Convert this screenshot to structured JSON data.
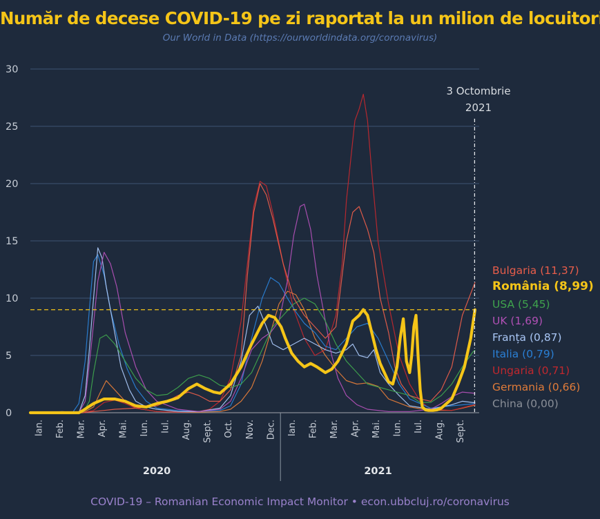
{
  "title": "Număr de decese COVID-19 pe zi raportat la un milion de locuitori",
  "subtitle": "Our World in Data (https://ourworldindata.org/coronavirus)",
  "footer": "COVID-19 – Romanian Economic Impact Monitor • econ.ubbcluj.ro/coronavirus",
  "chart_data": {
    "type": "line",
    "xlabel": "",
    "ylabel": "",
    "ylim": [
      0,
      30
    ],
    "yticks": [
      0,
      5,
      10,
      15,
      20,
      25,
      30
    ],
    "x_tick_unit": "month",
    "month_labels": [
      "Ian.",
      "Feb.",
      "Mar.",
      "Apr.",
      "Mai.",
      "Iun.",
      "Iul.",
      "Aug.",
      "Sept.",
      "Oct.",
      "Nov.",
      "Dec.",
      "Ian.",
      "Feb.",
      "Mar.",
      "Apr.",
      "Mai.",
      "Iun.",
      "Iul.",
      "Aug.",
      "Sept."
    ],
    "year_labels": [
      {
        "label": "2020",
        "month_index": 6
      },
      {
        "label": "2021",
        "month_index": 16.5
      }
    ],
    "grid": true,
    "legend_placement": "right",
    "annotation": {
      "line1": "3 Octombrie",
      "line2": "2021",
      "month_index": 21.1
    },
    "reference_line": {
      "y": 8.99,
      "color": "#f5c518",
      "style": "dashed"
    },
    "x_note": "x values are months since 1 Jan 2020 (0 = 1 Jan 2020, 12 = 1 Jan 2021)",
    "series": [
      {
        "name": "China",
        "legend": "China (0,00)",
        "color": "#8a8f98",
        "width": 1.2,
        "x": [
          0,
          1,
          1.5,
          2,
          2.5,
          3,
          21.1
        ],
        "y": [
          0,
          0.05,
          0.1,
          0.05,
          0.02,
          0,
          0
        ]
      },
      {
        "name": "Germania",
        "legend": "Germania (0,66)",
        "color": "#e07b39",
        "width": 1.2,
        "x": [
          0,
          2.5,
          3,
          3.3,
          3.6,
          4,
          4.5,
          5,
          6,
          7,
          8,
          9,
          9.5,
          10,
          10.5,
          11,
          11.4,
          11.8,
          12.2,
          12.6,
          13,
          13.5,
          14,
          14.5,
          15,
          15.5,
          16,
          16.5,
          17,
          18,
          19,
          20,
          20.5,
          21.1
        ],
        "y": [
          0,
          0,
          0.5,
          1.7,
          2.8,
          2.0,
          1.0,
          0.4,
          0.1,
          0.05,
          0.05,
          0.1,
          0.3,
          1.0,
          2.2,
          4.5,
          7.0,
          9.5,
          10.6,
          10.3,
          9.0,
          6.5,
          5.0,
          3.8,
          2.8,
          2.5,
          2.6,
          2.3,
          1.2,
          0.5,
          0.2,
          0.2,
          0.4,
          0.66
        ]
      },
      {
        "name": "Ungaria",
        "legend": "Ungaria (0,71)",
        "color": "#c0282e",
        "width": 1.2,
        "x": [
          0,
          2.5,
          3,
          3.5,
          4,
          4.5,
          5,
          6,
          7,
          8,
          8.5,
          9,
          9.5,
          10,
          10.3,
          10.6,
          10.9,
          11.2,
          11.5,
          12,
          12.5,
          13,
          13.5,
          14,
          14.5,
          14.8,
          15,
          15.2,
          15.4,
          15.6,
          15.8,
          16,
          16.2,
          16.5,
          17,
          17.5,
          18,
          18.5,
          19,
          20,
          21.1
        ],
        "y": [
          0,
          0,
          0.2,
          0.9,
          1.1,
          0.8,
          0.4,
          0.1,
          0.05,
          0.1,
          0.3,
          1.0,
          3.0,
          8.0,
          13.0,
          18.0,
          20.2,
          19.8,
          17.5,
          13.0,
          9.0,
          6.5,
          5.0,
          5.5,
          8.5,
          13.0,
          18.5,
          22.0,
          25.5,
          26.5,
          27.8,
          25.5,
          21.0,
          15.0,
          9.5,
          5.0,
          2.5,
          1.0,
          0.3,
          0.2,
          0.71
        ]
      },
      {
        "name": "Italia",
        "legend": "Italia (0,79)",
        "color": "#2a7fd4",
        "width": 1.2,
        "x": [
          0,
          2,
          2.3,
          2.6,
          2.8,
          3.0,
          3.2,
          3.5,
          3.8,
          4.2,
          4.6,
          5,
          5.5,
          6,
          7,
          8,
          9,
          9.5,
          10,
          10.5,
          11,
          11.4,
          11.8,
          12.2,
          12.6,
          13,
          13.5,
          14,
          14.5,
          15,
          15.5,
          16,
          16.5,
          17,
          17.5,
          18,
          19,
          20,
          21.1
        ],
        "y": [
          0,
          0,
          0.8,
          4.5,
          9.0,
          13.2,
          13.8,
          12.0,
          9.0,
          6.0,
          3.8,
          2.2,
          1.0,
          0.4,
          0.2,
          0.1,
          0.2,
          0.6,
          2.5,
          6.5,
          10.0,
          11.8,
          11.3,
          10.0,
          8.8,
          7.8,
          7.0,
          5.8,
          5.5,
          6.5,
          7.5,
          7.8,
          6.5,
          4.5,
          2.5,
          1.2,
          0.4,
          0.6,
          0.79
        ]
      },
      {
        "name": "Franța",
        "legend": "Franța (0,87)",
        "color": "#a9c6f5",
        "width": 1.2,
        "x": [
          0,
          2.3,
          2.6,
          2.8,
          3.0,
          3.2,
          3.4,
          3.6,
          3.9,
          4.3,
          4.7,
          5,
          5.5,
          6,
          7,
          8,
          9,
          9.5,
          10,
          10.4,
          10.8,
          11.2,
          11.5,
          12,
          12.5,
          13,
          13.5,
          14,
          14.5,
          15,
          15.3,
          15.6,
          16,
          16.3,
          16.6,
          17,
          17.5,
          18,
          19,
          20,
          20.5,
          21.1
        ],
        "y": [
          0,
          0,
          1.5,
          5.5,
          10.0,
          14.4,
          13.5,
          11.0,
          8.0,
          4.0,
          2.0,
          1.0,
          0.5,
          0.3,
          0.1,
          0.1,
          0.4,
          1.5,
          4.5,
          8.5,
          9.3,
          7.5,
          6.0,
          5.5,
          6.0,
          6.5,
          6.0,
          5.5,
          5.2,
          5.5,
          6.0,
          5.0,
          4.8,
          5.5,
          3.5,
          2.5,
          1.5,
          0.6,
          0.3,
          0.7,
          1.0,
          0.87
        ]
      },
      {
        "name": "UK",
        "legend": "UK (1,69)",
        "color": "#b050b5",
        "width": 1.2,
        "x": [
          0,
          2.3,
          2.6,
          2.9,
          3.2,
          3.5,
          3.8,
          4.1,
          4.5,
          5,
          5.5,
          6,
          7,
          8,
          9,
          9.5,
          10,
          10.5,
          11,
          11.4,
          11.8,
          12.2,
          12.5,
          12.8,
          13,
          13.3,
          13.6,
          14,
          14.3,
          14.6,
          15,
          15.5,
          16,
          17,
          18,
          19,
          19.5,
          20,
          20.5,
          21.1
        ],
        "y": [
          0,
          0,
          1.0,
          6.0,
          11.5,
          14.0,
          13.0,
          11.0,
          7.0,
          4.0,
          2.0,
          1.0,
          0.3,
          0.1,
          0.3,
          1.0,
          3.0,
          5.5,
          6.5,
          7.0,
          8.0,
          11.5,
          15.5,
          18.0,
          18.2,
          16.0,
          12.0,
          8.0,
          5.0,
          3.0,
          1.5,
          0.7,
          0.3,
          0.1,
          0.1,
          0.3,
          0.8,
          1.4,
          1.8,
          1.69
        ]
      },
      {
        "name": "USA",
        "legend": "USA (5,45)",
        "color": "#3fa34d",
        "width": 1.2,
        "x": [
          0,
          2.5,
          2.8,
          3.0,
          3.3,
          3.6,
          4,
          4.5,
          5,
          5.5,
          6,
          6.5,
          7,
          7.5,
          8,
          8.5,
          9,
          9.5,
          10,
          10.5,
          11,
          11.5,
          12,
          12.5,
          13,
          13.5,
          14,
          14.5,
          15,
          16,
          17,
          18,
          18.5,
          19,
          19.5,
          20,
          20.5,
          21,
          21.1
        ],
        "y": [
          0,
          0,
          1.0,
          3.5,
          6.5,
          6.8,
          6.0,
          4.5,
          3.0,
          2.0,
          1.5,
          1.6,
          2.2,
          3.0,
          3.3,
          3.0,
          2.4,
          2.2,
          2.5,
          3.5,
          5.5,
          7.5,
          8.5,
          9.5,
          10.0,
          9.5,
          8.0,
          6.0,
          4.5,
          2.5,
          2.0,
          1.5,
          0.9,
          0.9,
          1.5,
          2.5,
          4.0,
          5.3,
          5.45
        ]
      },
      {
        "name": "Bulgaria",
        "legend": "Bulgaria (11,37)",
        "color": "#e85d4a",
        "width": 1.2,
        "x": [
          0,
          2.5,
          3,
          3.5,
          4,
          5,
          6,
          6.5,
          7,
          7.5,
          8,
          8.5,
          9,
          9.5,
          10,
          10.3,
          10.6,
          10.9,
          11.2,
          11.5,
          12,
          12.5,
          13,
          13.5,
          14,
          14.5,
          14.8,
          15,
          15.3,
          15.6,
          16,
          16.3,
          16.6,
          17,
          17.3,
          17.6,
          18,
          18.5,
          19,
          19.5,
          20,
          20.5,
          21.1
        ],
        "y": [
          0,
          0,
          0.1,
          0.2,
          0.3,
          0.4,
          0.6,
          1.0,
          1.5,
          1.8,
          1.5,
          1.0,
          1.0,
          2.0,
          5.0,
          12.0,
          17.5,
          20.0,
          19.0,
          17.0,
          13.0,
          10.0,
          8.5,
          7.5,
          6.5,
          7.5,
          12.0,
          15.0,
          17.5,
          18.0,
          16.0,
          14.0,
          10.0,
          7.0,
          4.0,
          2.5,
          1.5,
          1.2,
          1.0,
          2.0,
          4.0,
          8.5,
          11.37
        ]
      },
      {
        "name": "România",
        "legend": "România (8,99)",
        "color": "#f5c518",
        "width": 4.2,
        "bold": true,
        "x": [
          0,
          2.3,
          2.5,
          3,
          3.5,
          4,
          4.5,
          5,
          5.5,
          6,
          6.5,
          7,
          7.5,
          7.9,
          8.3,
          8.7,
          9,
          9.5,
          10,
          10.5,
          11,
          11.3,
          11.6,
          11.9,
          12.1,
          12.4,
          12.7,
          13,
          13.3,
          13.6,
          14,
          14.3,
          14.6,
          15,
          15.3,
          15.6,
          15.8,
          16,
          16.2,
          16.4,
          16.6,
          16.8,
          17,
          17.2,
          17.4,
          17.55,
          17.7,
          17.85,
          18,
          18.1,
          18.2,
          18.3,
          18.4,
          18.5,
          18.6,
          18.75,
          18.9,
          19.1,
          19.3,
          19.5,
          20,
          20.3,
          20.6,
          20.9,
          21.1
        ],
        "y": [
          0,
          0,
          0.2,
          0.8,
          1.2,
          1.2,
          1.0,
          0.6,
          0.5,
          0.8,
          1.0,
          1.3,
          2.1,
          2.5,
          2.1,
          1.8,
          1.7,
          2.5,
          4.0,
          6.0,
          7.8,
          8.5,
          8.3,
          7.5,
          6.5,
          5.2,
          4.5,
          4.0,
          4.3,
          4.0,
          3.5,
          3.8,
          4.5,
          6.0,
          8.0,
          8.5,
          9.0,
          8.5,
          7.0,
          5.5,
          4.3,
          3.5,
          2.7,
          2.5,
          4.0,
          6.5,
          8.2,
          4.5,
          3.5,
          5.0,
          7.5,
          8.5,
          5.0,
          2.0,
          0.5,
          0.25,
          0.2,
          0.2,
          0.25,
          0.4,
          1.2,
          2.5,
          4.0,
          6.5,
          8.99
        ]
      }
    ]
  }
}
